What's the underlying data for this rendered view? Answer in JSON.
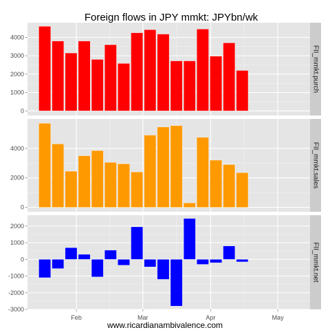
{
  "chart_data": {
    "type": "bar",
    "title": "Foreign flows in JPY mmkt: JPYbn/wk",
    "caption": "www.ricardianambivalence.com",
    "x_tick_labels": [
      "Feb",
      "Mar",
      "Apr",
      "May"
    ],
    "grid": true,
    "panels": [
      {
        "name": "FII_mmkt.purch",
        "color": "#ff0000",
        "ylim": [
          -250,
          4800
        ],
        "yticks": [
          0,
          1000,
          2000,
          3000,
          4000
        ],
        "values": [
          4600,
          3800,
          3150,
          3800,
          2800,
          3600,
          2580,
          4250,
          4420,
          4180,
          2720,
          2720,
          4450,
          2980,
          3700,
          2200
        ]
      },
      {
        "name": "FII_mmkt.sales",
        "color": "#ff9900",
        "ylim": [
          -300,
          6000
        ],
        "yticks": [
          0,
          2000,
          4000
        ],
        "values": [
          5700,
          4300,
          2450,
          3500,
          3850,
          3050,
          2950,
          2400,
          4900,
          5450,
          5550,
          300,
          4750,
          3200,
          2900,
          2350
        ]
      },
      {
        "name": "FII_mmkt.net",
        "color": "#0000ff",
        "ylim": [
          -3000,
          2650
        ],
        "yticks": [
          -3000,
          -2000,
          -1000,
          0,
          1000,
          2000
        ],
        "values": [
          -1100,
          -550,
          700,
          300,
          -1050,
          550,
          -350,
          1950,
          -450,
          -1200,
          -2800,
          2450,
          -300,
          -200,
          800,
          -150
        ]
      }
    ]
  }
}
